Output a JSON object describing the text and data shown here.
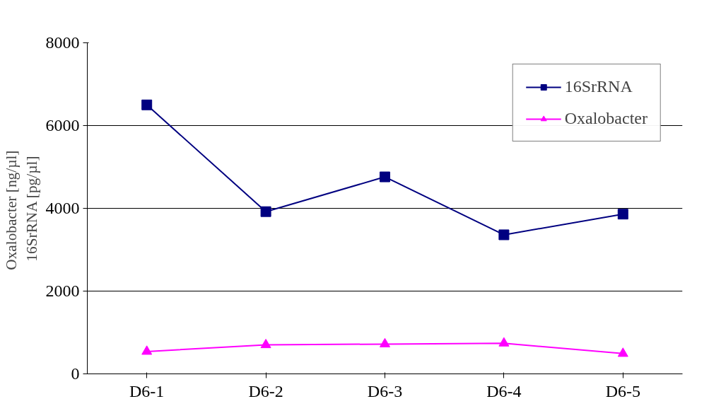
{
  "chart_data": {
    "type": "line",
    "ylabel": "Oxalobacter  [ng/µl]\n16SrRNA [pg/µl]",
    "categories": [
      "D6-1",
      "D6-2",
      "D6-3",
      "D6-4",
      "D6-5"
    ],
    "series": [
      {
        "name": "16SrRNA",
        "color": "#000080",
        "marker": "square",
        "values": [
          6500,
          3920,
          4760,
          3360,
          3860
        ]
      },
      {
        "name": "Oxalobacter",
        "color": "#ff00ff",
        "marker": "triangle",
        "values": [
          540,
          700,
          720,
          740,
          490
        ]
      }
    ],
    "ylim": [
      0,
      8000
    ],
    "yticks": [
      0,
      2000,
      4000,
      6000,
      8000
    ],
    "grid": "y",
    "legend": "top right",
    "line_style": "solid"
  }
}
